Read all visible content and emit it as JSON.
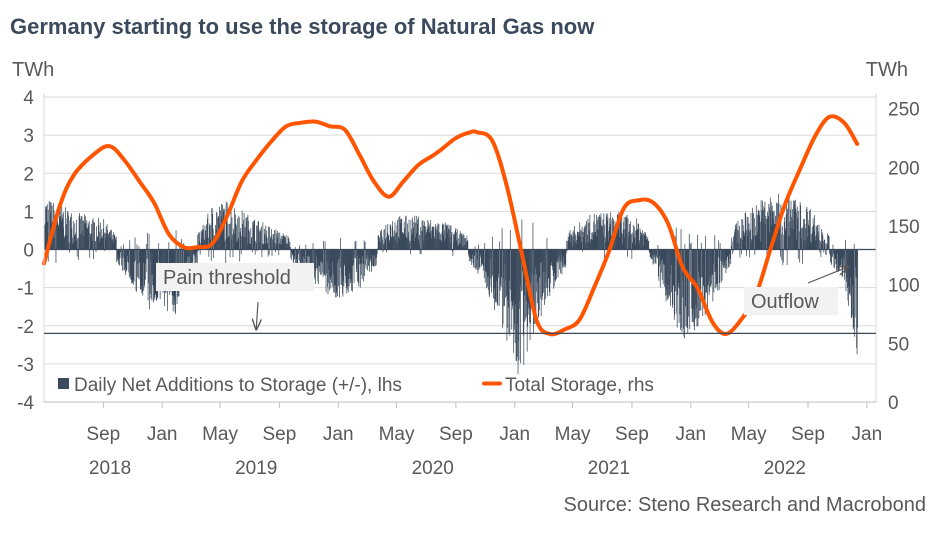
{
  "title": "Germany starting to use the storage of Natural Gas now",
  "source": "Source: Steno Research and Macrobond",
  "colors": {
    "bars": "#3a4a5c",
    "line": "#ff5500",
    "grid": "#d9d9d9",
    "threshold": "#3a4a5c",
    "text": "#595959"
  },
  "chart_data": {
    "type": "bar+line",
    "left_axis": {
      "unit": "TWh",
      "min": -4,
      "max": 4,
      "ticks": [
        "-4",
        "-3",
        "-2",
        "-1",
        "0",
        "1",
        "2",
        "3",
        "4"
      ]
    },
    "right_axis": {
      "unit": "TWh",
      "min": 0,
      "max": 260,
      "ticks": [
        "0",
        "50",
        "100",
        "150",
        "200",
        "250"
      ]
    },
    "x_axis": {
      "months": [
        {
          "date": "2018-09-01",
          "label": "Sep"
        },
        {
          "date": "2019-01-01",
          "label": "Jan"
        },
        {
          "date": "2019-05-01",
          "label": "May"
        },
        {
          "date": "2019-09-01",
          "label": "Sep"
        },
        {
          "date": "2020-01-01",
          "label": "Jan"
        },
        {
          "date": "2020-05-01",
          "label": "May"
        },
        {
          "date": "2020-09-01",
          "label": "Sep"
        },
        {
          "date": "2021-01-01",
          "label": "Jan"
        },
        {
          "date": "2021-05-01",
          "label": "May"
        },
        {
          "date": "2021-09-01",
          "label": "Sep"
        },
        {
          "date": "2022-01-01",
          "label": "Jan"
        },
        {
          "date": "2022-05-01",
          "label": "May"
        },
        {
          "date": "2022-09-01",
          "label": "Sep"
        },
        {
          "date": "2023-01-01",
          "label": "Jan"
        }
      ],
      "years": [
        "2018",
        "2019",
        "2020",
        "2021",
        "2022"
      ],
      "range": [
        "2018-05-01",
        "2023-01-20"
      ]
    },
    "grid": true,
    "legend": {
      "position": "bottom-left",
      "items": [
        {
          "label": "Daily Net Additions to Storage (+/-), lhs",
          "type": "bar"
        },
        {
          "label": "Total Storage, rhs",
          "type": "line"
        }
      ]
    },
    "series": [
      {
        "name": "Daily Net Additions to Storage (+/-), lhs",
        "axis": "left",
        "type": "bar",
        "envelope": [
          {
            "date": "2018-05-01",
            "hi": 1.4,
            "lo": 0.0
          },
          {
            "date": "2018-07-01",
            "hi": 1.0,
            "lo": -0.1
          },
          {
            "date": "2018-09-01",
            "hi": 0.8,
            "lo": -0.1
          },
          {
            "date": "2018-10-01",
            "hi": 0.3,
            "lo": -0.4
          },
          {
            "date": "2018-11-01",
            "hi": 0.1,
            "lo": -1.0
          },
          {
            "date": "2018-12-01",
            "hi": 0.0,
            "lo": -1.6
          },
          {
            "date": "2019-01-01",
            "hi": 0.0,
            "lo": -1.4
          },
          {
            "date": "2019-01-20",
            "hi": 0.0,
            "lo": -2.1
          },
          {
            "date": "2019-02-15",
            "hi": 0.2,
            "lo": -0.9
          },
          {
            "date": "2019-03-15",
            "hi": 0.4,
            "lo": -0.4
          },
          {
            "date": "2019-04-15",
            "hi": 1.2,
            "lo": 0.0
          },
          {
            "date": "2019-05-15",
            "hi": 1.3,
            "lo": 0.0
          },
          {
            "date": "2019-07-01",
            "hi": 0.9,
            "lo": 0.0
          },
          {
            "date": "2019-09-01",
            "hi": 0.5,
            "lo": -0.1
          },
          {
            "date": "2019-10-15",
            "hi": 0.2,
            "lo": -0.6
          },
          {
            "date": "2019-12-01",
            "hi": 0.0,
            "lo": -1.1
          },
          {
            "date": "2020-01-01",
            "hi": 0.1,
            "lo": -1.4
          },
          {
            "date": "2020-02-15",
            "hi": 0.1,
            "lo": -1.0
          },
          {
            "date": "2020-03-15",
            "hi": 0.2,
            "lo": -0.5
          },
          {
            "date": "2020-04-15",
            "hi": 0.9,
            "lo": 0.0
          },
          {
            "date": "2020-06-15",
            "hi": 0.9,
            "lo": 0.0
          },
          {
            "date": "2020-08-15",
            "hi": 0.7,
            "lo": 0.0
          },
          {
            "date": "2020-10-01",
            "hi": 0.3,
            "lo": -0.4
          },
          {
            "date": "2020-11-01",
            "hi": 0.0,
            "lo": -1.0
          },
          {
            "date": "2020-12-01",
            "hi": 0.0,
            "lo": -2.0
          },
          {
            "date": "2021-01-10",
            "hi": 0.0,
            "lo": -3.4
          },
          {
            "date": "2021-02-01",
            "hi": 0.0,
            "lo": -2.6
          },
          {
            "date": "2021-03-01",
            "hi": 0.0,
            "lo": -1.6
          },
          {
            "date": "2021-04-01",
            "hi": 0.3,
            "lo": -0.8
          },
          {
            "date": "2021-05-01",
            "hi": 0.6,
            "lo": -0.2
          },
          {
            "date": "2021-06-15",
            "hi": 1.0,
            "lo": 0.0
          },
          {
            "date": "2021-08-01",
            "hi": 1.0,
            "lo": 0.0
          },
          {
            "date": "2021-09-15",
            "hi": 0.8,
            "lo": 0.0
          },
          {
            "date": "2021-10-15",
            "hi": 0.2,
            "lo": -0.5
          },
          {
            "date": "2021-11-15",
            "hi": 0.0,
            "lo": -1.6
          },
          {
            "date": "2021-12-15",
            "hi": 0.0,
            "lo": -2.4
          },
          {
            "date": "2022-01-15",
            "hi": 0.0,
            "lo": -2.1
          },
          {
            "date": "2022-02-15",
            "hi": 0.0,
            "lo": -1.4
          },
          {
            "date": "2022-03-15",
            "hi": 0.3,
            "lo": -0.7
          },
          {
            "date": "2022-04-15",
            "hi": 0.9,
            "lo": 0.0
          },
          {
            "date": "2022-06-01",
            "hi": 1.4,
            "lo": 0.0
          },
          {
            "date": "2022-07-15",
            "hi": 1.5,
            "lo": 0.0
          },
          {
            "date": "2022-09-01",
            "hi": 1.2,
            "lo": 0.0
          },
          {
            "date": "2022-10-01",
            "hi": 0.6,
            "lo": -0.2
          },
          {
            "date": "2022-11-01",
            "hi": 0.1,
            "lo": -0.6
          },
          {
            "date": "2022-11-20",
            "hi": 0.0,
            "lo": -1.3
          },
          {
            "date": "2022-12-05",
            "hi": 0.0,
            "lo": -2.5
          },
          {
            "date": "2022-12-12",
            "hi": 0.0,
            "lo": -2.9
          }
        ]
      },
      {
        "name": "Total Storage, rhs",
        "axis": "right",
        "type": "line",
        "points": [
          [
            "2018-05-01",
            118
          ],
          [
            "2018-06-01",
            165
          ],
          [
            "2018-07-01",
            193
          ],
          [
            "2018-08-15",
            212
          ],
          [
            "2018-09-15",
            218
          ],
          [
            "2018-10-15",
            206
          ],
          [
            "2018-11-15",
            188
          ],
          [
            "2018-12-15",
            170
          ],
          [
            "2019-01-15",
            143
          ],
          [
            "2019-02-15",
            132
          ],
          [
            "2019-03-15",
            132
          ],
          [
            "2019-04-15",
            135
          ],
          [
            "2019-05-15",
            158
          ],
          [
            "2019-06-15",
            188
          ],
          [
            "2019-07-15",
            206
          ],
          [
            "2019-08-15",
            222
          ],
          [
            "2019-09-15",
            235
          ],
          [
            "2019-10-15",
            238
          ],
          [
            "2019-11-15",
            239
          ],
          [
            "2019-12-15",
            235
          ],
          [
            "2020-01-15",
            232
          ],
          [
            "2020-02-15",
            210
          ],
          [
            "2020-03-15",
            188
          ],
          [
            "2020-04-15",
            175
          ],
          [
            "2020-05-15",
            188
          ],
          [
            "2020-06-15",
            202
          ],
          [
            "2020-07-15",
            210
          ],
          [
            "2020-08-01",
            215
          ],
          [
            "2020-09-01",
            225
          ],
          [
            "2020-10-01",
            230
          ],
          [
            "2020-10-15",
            230
          ],
          [
            "2020-11-15",
            223
          ],
          [
            "2020-12-15",
            185
          ],
          [
            "2021-01-15",
            128
          ],
          [
            "2021-02-15",
            70
          ],
          [
            "2021-03-15",
            58
          ],
          [
            "2021-04-15",
            62
          ],
          [
            "2021-05-15",
            70
          ],
          [
            "2021-06-15",
            98
          ],
          [
            "2021-07-15",
            128
          ],
          [
            "2021-08-15",
            165
          ],
          [
            "2021-09-15",
            172
          ],
          [
            "2021-10-15",
            170
          ],
          [
            "2021-11-15",
            152
          ],
          [
            "2021-12-15",
            115
          ],
          [
            "2022-01-15",
            97
          ],
          [
            "2022-02-15",
            68
          ],
          [
            "2022-03-15",
            58
          ],
          [
            "2022-04-15",
            70
          ],
          [
            "2022-05-15",
            90
          ],
          [
            "2022-06-15",
            130
          ],
          [
            "2022-07-15",
            168
          ],
          [
            "2022-08-15",
            198
          ],
          [
            "2022-09-15",
            226
          ],
          [
            "2022-10-15",
            243
          ],
          [
            "2022-11-15",
            238
          ],
          [
            "2022-12-12",
            220
          ]
        ]
      }
    ],
    "annotations": [
      {
        "text": "Pain threshold",
        "type": "horizontal-line",
        "axis": "left",
        "y": -2.2,
        "arrow_to_date": "2019-07-15"
      },
      {
        "text": "Outflow",
        "type": "arrow",
        "arrow_to_date": "2022-12-01",
        "arrow_to_y": -0.3
      }
    ]
  }
}
